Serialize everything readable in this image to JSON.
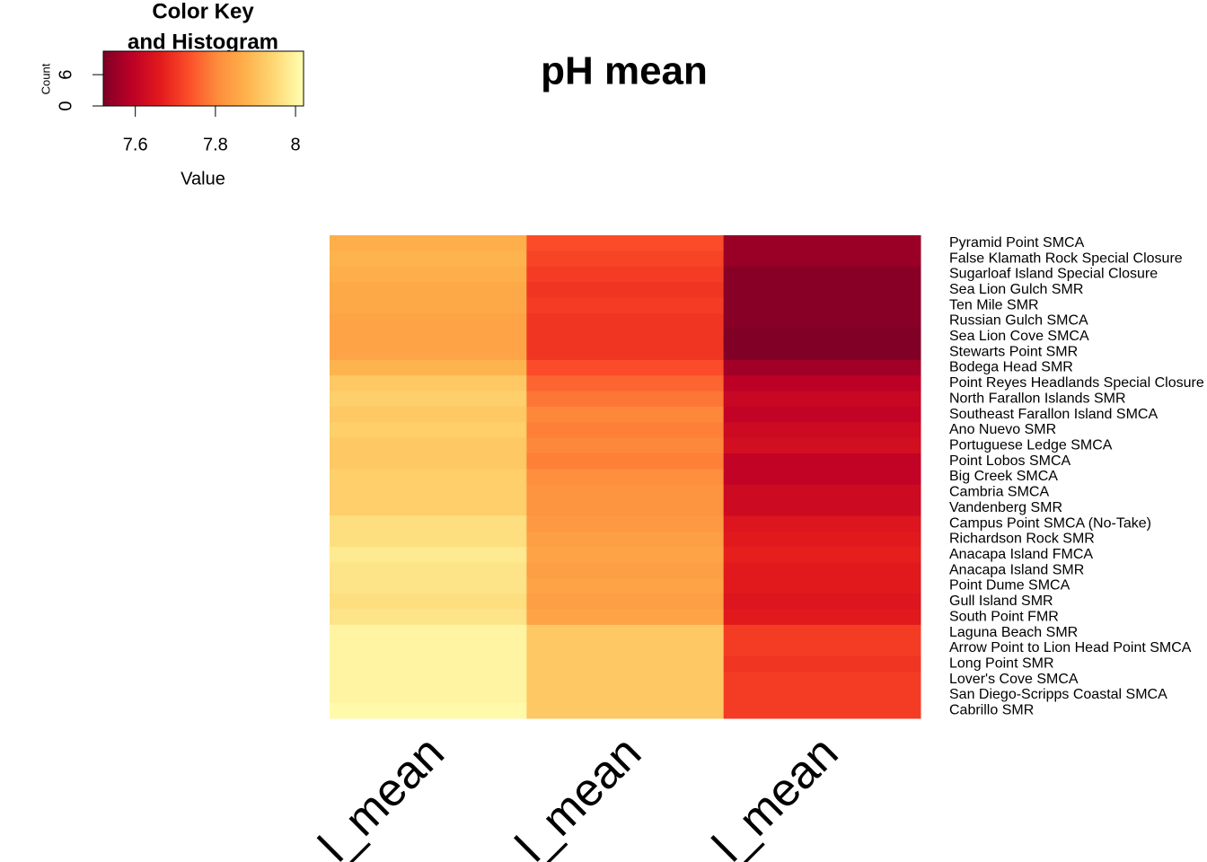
{
  "chart_data": {
    "type": "heatmap",
    "title": "pH mean",
    "key": {
      "title_lines": [
        "Color Key",
        "and Histogram"
      ],
      "xlabel": "Value",
      "ylabel": "Count",
      "xlim": [
        7.52,
        8.02
      ],
      "xticks": [
        7.6,
        7.8,
        8
      ],
      "ylim": [
        0,
        10.5
      ],
      "yticks": [
        0,
        6
      ]
    },
    "palette": [
      "#800026",
      "#bd0026",
      "#e31a1c",
      "#fc4e2a",
      "#fd8d3c",
      "#feb24c",
      "#fed976",
      "#ffffb2"
    ],
    "columns": [
      "l_mean",
      "l_mean",
      "l_mean"
    ],
    "rows": [
      "Pyramid Point SMCA",
      "False Klamath Rock Special Closure",
      "Sugarloaf Island Special Closure",
      "Sea Lion Gulch SMR",
      "Ten Mile SMR",
      "Russian Gulch SMCA",
      "Sea Lion Cove SMCA",
      "Stewarts Point SMR",
      "Bodega Head SMR",
      "Point Reyes Headlands Special Closure",
      "North Farallon Islands SMR",
      "Southeast Farallon Island SMCA",
      "Ano Nuevo SMR",
      "Portuguese Ledge SMCA",
      "Point Lobos SMCA",
      "Big Creek SMCA",
      "Cambria SMCA",
      "Vandenberg SMR",
      "Campus Point SMCA (No-Take)",
      "Richardson Rock SMR",
      "Anacapa Island FMCA",
      "Anacapa Island SMR",
      "Point Dume SMCA",
      "Gull Island SMR",
      "South Point FMR",
      "Laguna Beach SMR",
      "Arrow Point to Lion Head Point SMCA",
      "Long Point SMR",
      "Lover's Cove SMCA",
      "San Diego-Scripps Coastal SMCA",
      "Cabrillo SMR"
    ],
    "values": [
      [
        7.87,
        7.73,
        7.55
      ],
      [
        7.88,
        7.72,
        7.55
      ],
      [
        7.87,
        7.71,
        7.53
      ],
      [
        7.86,
        7.7,
        7.53
      ],
      [
        7.86,
        7.71,
        7.53
      ],
      [
        7.85,
        7.7,
        7.53
      ],
      [
        7.85,
        7.7,
        7.52
      ],
      [
        7.85,
        7.7,
        7.52
      ],
      [
        7.88,
        7.73,
        7.56
      ],
      [
        7.92,
        7.76,
        7.59
      ],
      [
        7.93,
        7.78,
        7.61
      ],
      [
        7.92,
        7.8,
        7.6
      ],
      [
        7.93,
        7.79,
        7.62
      ],
      [
        7.92,
        7.8,
        7.63
      ],
      [
        7.92,
        7.79,
        7.6
      ],
      [
        7.93,
        7.81,
        7.6
      ],
      [
        7.93,
        7.82,
        7.62
      ],
      [
        7.93,
        7.82,
        7.62
      ],
      [
        7.96,
        7.83,
        7.65
      ],
      [
        7.96,
        7.84,
        7.66
      ],
      [
        7.98,
        7.85,
        7.67
      ],
      [
        7.97,
        7.84,
        7.66
      ],
      [
        7.97,
        7.85,
        7.66
      ],
      [
        7.96,
        7.84,
        7.65
      ],
      [
        7.97,
        7.85,
        7.66
      ],
      [
        8.0,
        7.92,
        7.71
      ],
      [
        8.0,
        7.92,
        7.71
      ],
      [
        8.0,
        7.92,
        7.7
      ],
      [
        8.0,
        7.92,
        7.71
      ],
      [
        8.0,
        7.92,
        7.71
      ],
      [
        8.01,
        7.92,
        7.71
      ]
    ]
  }
}
